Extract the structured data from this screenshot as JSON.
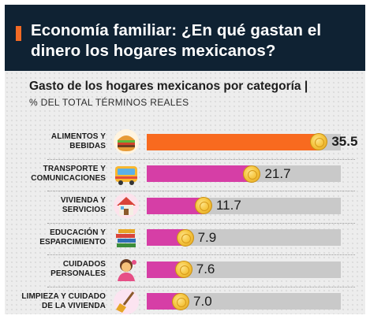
{
  "header": {
    "title": "Economía familiar: ¿En qué gastan el dinero los hogares mexicanos?"
  },
  "chart_data": {
    "type": "bar",
    "orientation": "horizontal",
    "title": "Gasto de los hogares mexicanos por categoría |",
    "unit_label": "% DEL TOTAL TÉRMINOS REALES",
    "categories": [
      "ALIMENTOS Y BEBIDAS",
      "TRANSPORTE Y COMUNICACIONES",
      "VIVIENDA Y SERVICIOS",
      "EDUCACIÓN Y ESPARCIMIENTO",
      "CUIDADOS PERSONALES",
      "LIMPIEZA Y CUIDADO DE LA VIVIENDA"
    ],
    "category_lines": [
      [
        "ALIMENTOS Y",
        "BEBIDAS"
      ],
      [
        "TRANSPORTE Y",
        "COMUNICACIONES"
      ],
      [
        "VIVIENDA Y",
        "SERVICIOS"
      ],
      [
        "EDUCACIÓN Y",
        "ESPARCIMIENTO"
      ],
      [
        "CUIDADOS",
        "PERSONALES"
      ],
      [
        "LIMPIEZA Y CUIDADO",
        "DE LA VIVIENDA"
      ]
    ],
    "values": [
      35.5,
      21.7,
      11.7,
      7.9,
      7.6,
      7.0
    ],
    "value_labels": [
      "35.5",
      "21.7",
      "11.7",
      "7.9",
      "7.6",
      "7.0"
    ],
    "icons": [
      "hamburger-icon",
      "bus-icon",
      "house-icon",
      "books-icon",
      "person-icon",
      "broom-icon"
    ],
    "xlim": [
      0,
      40
    ],
    "colors": {
      "highlight": "#f86a1f",
      "bar": "#d63ea6",
      "track": "#c9c9c9",
      "header_bg": "#0f2233",
      "accent": "#f26a25"
    }
  }
}
